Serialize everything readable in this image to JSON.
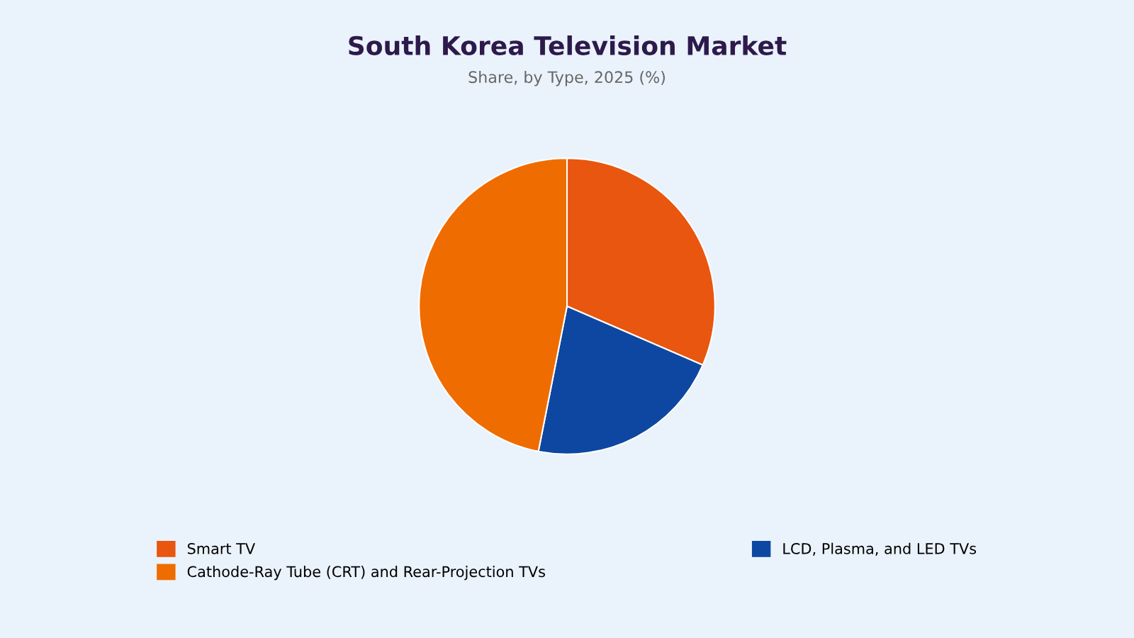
{
  "chart_data": {
    "type": "pie",
    "title": "South Korea Television Market",
    "subtitle": "Share, by Type, 2025 (%)",
    "categories": [
      "Smart TV",
      "LCD, Plasma, and LED TVs",
      "Cathode-Ray Tube (CRT) and Rear-Projection TVs"
    ],
    "values": [
      31.5,
      21.6,
      46.9
    ],
    "colors": [
      "#e8560f",
      "#0d47a1",
      "#ef6c00"
    ],
    "legend": "bottom"
  }
}
